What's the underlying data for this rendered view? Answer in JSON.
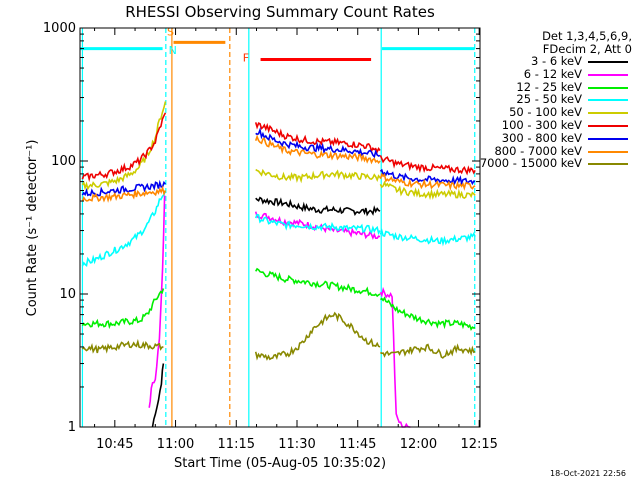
{
  "chart_data": {
    "type": "line",
    "title": "RHESSI Observing Summary Count Rates",
    "xlabel": "Start Time (05-Aug-05 10:35:02)",
    "ylabel": "Count Rate (s⁻¹ detector⁻¹)",
    "yscale": "log",
    "ylim": [
      1,
      1000
    ],
    "xlim_minutes": [
      36.4,
      135.2
    ],
    "x_tick_labels": [
      "10:45",
      "11:00",
      "11:15",
      "11:30",
      "11:45",
      "12:00",
      "12:15"
    ],
    "x_tick_minutes": [
      45,
      60,
      75,
      90,
      105,
      120,
      135
    ],
    "y_tick_labels": [
      "1",
      "10",
      "100",
      "1000"
    ],
    "y_tick_values": [
      1,
      10,
      100,
      1000
    ],
    "legend_header": [
      "Det 1,3,4,5,6,9,",
      "FDecim 2, Att 0"
    ],
    "legend_placement": "right",
    "series": [
      {
        "name": "3 - 6 keV",
        "color": "#000000",
        "segments": [
          {
            "x": [
              54.3,
              55.0,
              55.8,
              56.5,
              57.0
            ],
            "y": [
              1.0,
              1.3,
              1.6,
              2.2,
              3.0
            ]
          },
          {
            "x": [
              79.8,
              83,
              87,
              91,
              95,
              99,
              103,
              107,
              110.5
            ],
            "y": [
              52,
              50,
              48,
              45,
              43,
              43,
              42,
              42,
              42
            ]
          }
        ]
      },
      {
        "name": "6 - 12 keV",
        "color": "#ff00ff",
        "segments": [
          {
            "x": [
              53.5,
              54.0,
              55.0,
              56.0,
              56.8,
              57.3
            ],
            "y": [
              1.4,
              1.9,
              2.4,
              4.5,
              15,
              55
            ]
          },
          {
            "x": [
              79.8,
              83,
              87,
              91,
              95,
              99,
              103,
              107,
              110.5
            ],
            "y": [
              40,
              38,
              35,
              34,
              32,
              30,
              29,
              28,
              27
            ]
          },
          {
            "x": [
              110.6,
              112,
              113.5,
              114.5,
              116,
              118
            ],
            "y": [
              10.5,
              10,
              9.8,
              1.2,
              1.0,
              1.0
            ]
          }
        ]
      },
      {
        "name": "12 - 25 keV",
        "color": "#00ee00",
        "segments": [
          {
            "x": [
              37,
              41,
              45,
              48,
              51,
              53,
              55,
              56,
              57.0
            ],
            "y": [
              6,
              6,
              6,
              6.2,
              6.3,
              7,
              9,
              10,
              11
            ]
          },
          {
            "x": [
              79.8,
              83,
              87,
              91,
              95,
              99,
              103,
              107,
              110.5
            ],
            "y": [
              15,
              14,
              13,
              12.5,
              12,
              11.5,
              11,
              10.5,
              10
            ]
          },
          {
            "x": [
              110.6,
              115,
              120,
              125,
              130,
              134
            ],
            "y": [
              9.5,
              7.5,
              6.5,
              6,
              6,
              5.6
            ]
          }
        ]
      },
      {
        "name": "25 - 50 keV",
        "color": "#00ffff",
        "segments": [
          {
            "x": [
              37,
              40,
              43,
              46,
              49,
              51,
              53,
              55,
              56,
              57.5
            ],
            "y": [
              17,
              18,
              20,
              22,
              25,
              28,
              33,
              42,
              50,
              60
            ]
          },
          {
            "x": [
              79.8,
              83,
              87,
              91,
              95,
              99,
              103,
              107,
              110.5
            ],
            "y": [
              38,
              35,
              33,
              33,
              32,
              32,
              31,
              31,
              30
            ]
          },
          {
            "x": [
              110.6,
              115,
              120,
              125,
              130,
              134
            ],
            "y": [
              29,
              27,
              26,
              25,
              26,
              27
            ]
          }
        ]
      },
      {
        "name": "50 - 100 keV",
        "color": "#cccc00",
        "segments": [
          {
            "x": [
              37,
              40,
              43,
              46,
              49,
              51,
              53,
              55,
              56,
              57.5
            ],
            "y": [
              65,
              66,
              68,
              72,
              80,
              90,
              110,
              150,
              200,
              280
            ]
          },
          {
            "x": [
              79.8,
              83,
              87,
              91,
              95,
              99,
              103,
              107,
              110.5
            ],
            "y": [
              85,
              80,
              75,
              75,
              78,
              80,
              78,
              76,
              75
            ]
          },
          {
            "x": [
              110.6,
              115,
              120,
              125,
              130,
              134
            ],
            "y": [
              68,
              60,
              57,
              56,
              56,
              55
            ]
          }
        ]
      },
      {
        "name": "100 - 300 keV",
        "color": "#ee0000",
        "segments": [
          {
            "x": [
              37,
              40,
              43,
              46,
              49,
              51,
              53,
              55,
              56,
              57.5
            ],
            "y": [
              75,
              78,
              80,
              85,
              92,
              100,
              115,
              140,
              175,
              230
            ]
          },
          {
            "x": [
              79.8,
              83,
              87,
              91,
              95,
              99,
              103,
              107,
              110.5
            ],
            "y": [
              190,
              175,
              155,
              145,
              140,
              138,
              135,
              130,
              120
            ]
          },
          {
            "x": [
              110.6,
              115,
              120,
              125,
              130,
              134
            ],
            "y": [
              105,
              95,
              90,
              88,
              86,
              85
            ]
          }
        ]
      },
      {
        "name": "300 - 800 keV",
        "color": "#0000ee",
        "segments": [
          {
            "x": [
              37,
              41,
              45,
              49,
              53,
              57.5
            ],
            "y": [
              57,
              58,
              60,
              62,
              64,
              67
            ]
          },
          {
            "x": [
              79.8,
              83,
              87,
              91,
              95,
              99,
              103,
              107,
              110.5
            ],
            "y": [
              170,
              150,
              135,
              128,
              125,
              123,
              120,
              115,
              110
            ]
          },
          {
            "x": [
              110.6,
              115,
              120,
              125,
              130,
              134
            ],
            "y": [
              85,
              76,
              73,
              72,
              71,
              70
            ]
          }
        ]
      },
      {
        "name": "800 - 7000 keV",
        "color": "#ff8800",
        "segments": [
          {
            "x": [
              37,
              41,
              45,
              49,
              53,
              57.5
            ],
            "y": [
              52,
              53,
              54,
              56,
              58,
              60
            ]
          },
          {
            "x": [
              79.8,
              83,
              87,
              91,
              95,
              99,
              103,
              107,
              110.5
            ],
            "y": [
              150,
              135,
              120,
              115,
              112,
              110,
              108,
              105,
              100
            ]
          },
          {
            "x": [
              110.6,
              115,
              120,
              125,
              130,
              134
            ],
            "y": [
              77,
              70,
              67,
              66,
              65,
              65
            ]
          }
        ]
      },
      {
        "name": "7000 - 15000 keV",
        "color": "#888800",
        "segments": [
          {
            "x": [
              37,
              41,
              45,
              49,
              53,
              57.0
            ],
            "y": [
              4.0,
              3.8,
              4.0,
              4.2,
              4.1,
              4.0
            ]
          },
          {
            "x": [
              79.8,
              84,
              88,
              91,
              94,
              97,
              99,
              101,
              104,
              107,
              110.5
            ],
            "y": [
              3.5,
              3.3,
              3.6,
              4.2,
              5.5,
              6.5,
              7.0,
              6.5,
              5.5,
              4.5,
              4.0
            ]
          },
          {
            "x": [
              110.6,
              114,
              118,
              122,
              126,
              130,
              134
            ],
            "y": [
              3.6,
              3.5,
              3.8,
              4.0,
              3.5,
              3.9,
              3.7
            ]
          }
        ]
      }
    ],
    "annotations": {
      "bars": [
        {
          "label": "",
          "color": "#00ffff",
          "y": 700,
          "x_start": 36.4,
          "x_end": 56.8
        },
        {
          "label": "S",
          "color": "#ff8800",
          "y": 780,
          "x_start": 59.5,
          "x_end": 72.3
        },
        {
          "label": "F",
          "color": "#ff0000",
          "y": 580,
          "x_start": 81.0,
          "x_end": 108.3
        },
        {
          "label": "",
          "color": "#00ffff",
          "y": 700,
          "x_start": 111.0,
          "x_end": 133.9
        }
      ],
      "vlines": [
        {
          "x": 37.0,
          "color": "#00ffff",
          "style": "solid"
        },
        {
          "x": 57.6,
          "color": "#00ffff",
          "style": "dashed"
        },
        {
          "x": 59.1,
          "color": "#ff8800",
          "style": "solid"
        },
        {
          "x": 73.4,
          "color": "#ff8800",
          "style": "dashed"
        },
        {
          "x": 78.1,
          "color": "#00ffff",
          "style": "solid"
        },
        {
          "x": 110.8,
          "color": "#00ffff",
          "style": "solid"
        },
        {
          "x": 133.9,
          "color": "#00ffff",
          "style": "dashed"
        }
      ],
      "markers": [
        {
          "text": "S",
          "color": "#ff8800",
          "x": 57.9,
          "y": 880
        },
        {
          "text": "N",
          "color": "#00ffff",
          "x": 58.3,
          "y": 640
        },
        {
          "text": "F",
          "color": "#ff3300",
          "x": 76.6,
          "y": 560
        }
      ]
    },
    "footer": "18-Oct-2021 22:56"
  }
}
